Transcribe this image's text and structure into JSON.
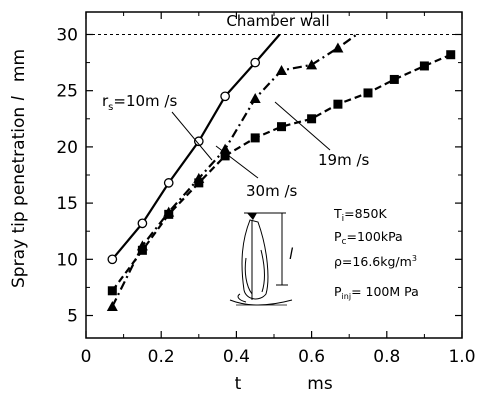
{
  "chart_data": {
    "type": "line",
    "xlabel": "t",
    "xunit": "ms",
    "ylabel": "Spray tip penetration",
    "ysymbol": "l",
    "yunit": "mm",
    "xlim": [
      0,
      1.0
    ],
    "ylim": [
      3,
      32
    ],
    "xticks": [
      "0",
      "0.2",
      "0.4",
      "0.6",
      "0.8",
      "1.0"
    ],
    "yticks": [
      "5",
      "10",
      "15",
      "20",
      "25",
      "30"
    ],
    "xtick_values": [
      0,
      0.2,
      0.4,
      0.6,
      0.8,
      1.0
    ],
    "ytick_values": [
      5,
      10,
      15,
      20,
      25,
      30
    ],
    "chamber_wall": {
      "label": "Chamber wall",
      "y": 30
    },
    "series": [
      {
        "marker": "open-circle",
        "line": "solid",
        "label_prefix": "r",
        "label_sub": "s",
        "label_suffix": "=10m /s",
        "x": [
          0.07,
          0.15,
          0.22,
          0.3,
          0.37,
          0.45
        ],
        "y": [
          10.0,
          13.2,
          16.8,
          20.5,
          24.5,
          27.5
        ],
        "line_x": [
          0.07,
          0.15,
          0.22,
          0.3,
          0.37,
          0.45,
          0.515
        ],
        "line_y": [
          10.0,
          13.2,
          16.8,
          20.5,
          24.5,
          27.5,
          30.0
        ]
      },
      {
        "marker": "triangle",
        "line": "dash-dot",
        "label": "19m /s",
        "x": [
          0.07,
          0.15,
          0.22,
          0.3,
          0.37,
          0.45,
          0.52,
          0.6,
          0.67
        ],
        "y": [
          5.8,
          11.2,
          14.2,
          17.2,
          19.8,
          24.3,
          26.8,
          27.3,
          28.8
        ],
        "line_x": [
          0.07,
          0.15,
          0.22,
          0.3,
          0.37,
          0.45,
          0.52,
          0.6,
          0.67,
          0.72
        ],
        "line_y": [
          5.8,
          11.2,
          14.2,
          17.2,
          19.8,
          24.3,
          26.8,
          27.3,
          28.8,
          30.0
        ]
      },
      {
        "marker": "filled-square",
        "line": "dash",
        "label": "30m /s",
        "x": [
          0.07,
          0.15,
          0.22,
          0.3,
          0.37,
          0.45,
          0.52,
          0.6,
          0.67,
          0.75,
          0.82,
          0.9,
          0.97
        ],
        "y": [
          7.2,
          10.8,
          14.0,
          16.8,
          19.2,
          20.8,
          21.8,
          22.5,
          23.8,
          24.8,
          26.0,
          27.2,
          28.2
        ],
        "line_x": [
          0.07,
          0.15,
          0.22,
          0.3,
          0.37,
          0.45,
          0.52,
          0.6,
          0.67,
          0.75,
          0.82,
          0.9,
          0.97
        ],
        "line_y": [
          7.2,
          10.8,
          14.0,
          16.8,
          19.2,
          20.8,
          21.8,
          22.5,
          23.8,
          24.8,
          26.0,
          27.2,
          28.2
        ]
      }
    ],
    "conditions": {
      "temperature": {
        "main": "T",
        "sub": "i",
        "value": "=850K"
      },
      "pressure": {
        "main": "P",
        "sub": "c",
        "value": "=100kPa"
      },
      "density": {
        "main": "ρ=16.6kg/m",
        "sup": "3"
      },
      "injection": {
        "main": "P",
        "sub": "inj",
        "value": "= 100M Pa"
      }
    },
    "inset_symbol": "l"
  }
}
